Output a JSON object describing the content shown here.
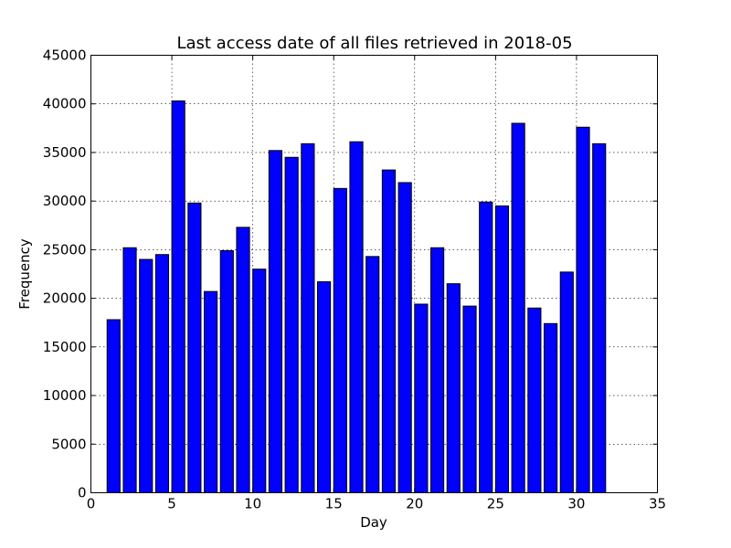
{
  "chart_data": {
    "type": "bar",
    "title": "Last access date of all files retrieved in 2018-05",
    "xlabel": "Day",
    "ylabel": "Frequency",
    "xlim": [
      0,
      35
    ],
    "ylim": [
      0,
      45000
    ],
    "xticks": [
      0,
      5,
      10,
      15,
      20,
      25,
      30,
      35
    ],
    "yticks": [
      0,
      5000,
      10000,
      15000,
      20000,
      25000,
      30000,
      35000,
      40000,
      45000
    ],
    "grid": true,
    "bar_color": "#0000ff",
    "x": [
      1,
      2,
      3,
      4,
      5,
      6,
      7,
      8,
      9,
      10,
      11,
      12,
      13,
      14,
      15,
      16,
      17,
      18,
      19,
      20,
      21,
      22,
      23,
      24,
      25,
      26,
      27,
      28,
      29,
      30,
      31
    ],
    "values": [
      17800,
      25200,
      24000,
      24500,
      40300,
      29800,
      20700,
      24900,
      27300,
      23000,
      35200,
      34500,
      35900,
      21700,
      31300,
      36100,
      24300,
      33200,
      31900,
      19400,
      25200,
      21500,
      19200,
      29900,
      29500,
      38000,
      19000,
      17400,
      22700,
      37600,
      35900
    ]
  }
}
